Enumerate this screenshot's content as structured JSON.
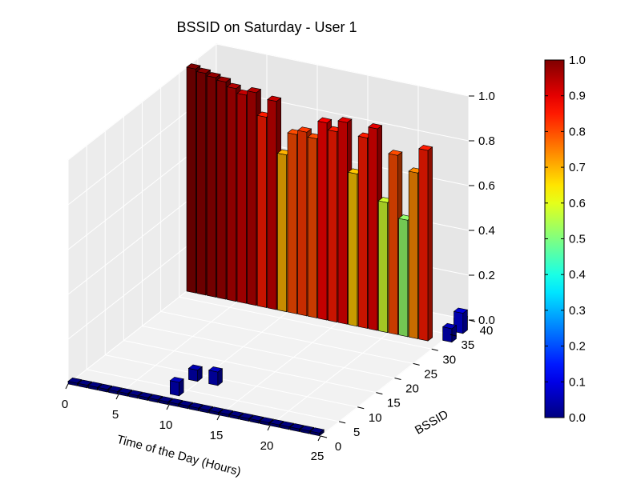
{
  "chart_data": {
    "type": "bar3d",
    "title": "BSSID on Saturday - User 1",
    "xlabel": "Time of the Day (Hours)",
    "ylabel": "BSSID",
    "zlabel": "",
    "xlim": [
      0,
      25
    ],
    "ylim": [
      0,
      40
    ],
    "zlim": [
      0,
      1.0
    ],
    "xticks": [
      "0",
      "5",
      "10",
      "15",
      "20",
      "25"
    ],
    "yticks": [
      "0",
      "5",
      "10",
      "15",
      "20",
      "25",
      "30",
      "35",
      "40"
    ],
    "zticks": [
      "0.0",
      "0.2",
      "0.4",
      "0.6",
      "0.8",
      "1.0"
    ],
    "colorbar": {
      "colormap": "jet",
      "range": [
        0.0,
        1.0
      ],
      "ticks": [
        "0.0",
        "0.1",
        "0.2",
        "0.3",
        "0.4",
        "0.5",
        "0.6",
        "0.7",
        "0.8",
        "0.9",
        "1.0"
      ]
    },
    "grid": true,
    "series": [
      {
        "bssid": 32,
        "x": [
          0,
          1,
          2,
          3,
          4,
          5,
          6,
          7,
          8,
          9,
          10,
          11,
          12,
          13,
          14,
          15,
          16,
          17,
          18,
          19,
          20,
          21,
          22,
          23
        ],
        "values": [
          1.0,
          0.99,
          0.98,
          0.97,
          0.95,
          0.93,
          0.95,
          0.85,
          0.93,
          0.7,
          0.8,
          0.82,
          0.8,
          0.88,
          0.85,
          0.9,
          0.68,
          0.85,
          0.9,
          0.58,
          0.8,
          0.52,
          0.74,
          0.85
        ]
      },
      {
        "bssid": 8,
        "x": [
          9,
          11
        ],
        "values": [
          0.05,
          0.06
        ]
      },
      {
        "bssid": 3,
        "x": [
          9
        ],
        "values": [
          0.06
        ]
      },
      {
        "bssid": 33,
        "x": [
          25
        ],
        "values": [
          0.06
        ]
      },
      {
        "bssid": 36,
        "x": [
          25,
          25
        ],
        "values": [
          0.06,
          0.09
        ]
      },
      {
        "bssid": 0,
        "x": [
          0,
          1,
          2,
          3,
          4,
          5,
          6,
          7,
          8,
          9,
          10,
          11,
          12,
          13,
          14,
          15,
          16,
          17,
          18,
          19,
          20,
          21,
          22,
          23,
          24
        ],
        "values": [
          0,
          0,
          0,
          0,
          0,
          0,
          0,
          0,
          0,
          0,
          0,
          0,
          0,
          0,
          0,
          0,
          0,
          0,
          0,
          0,
          0,
          0,
          0,
          0,
          0
        ]
      }
    ]
  }
}
